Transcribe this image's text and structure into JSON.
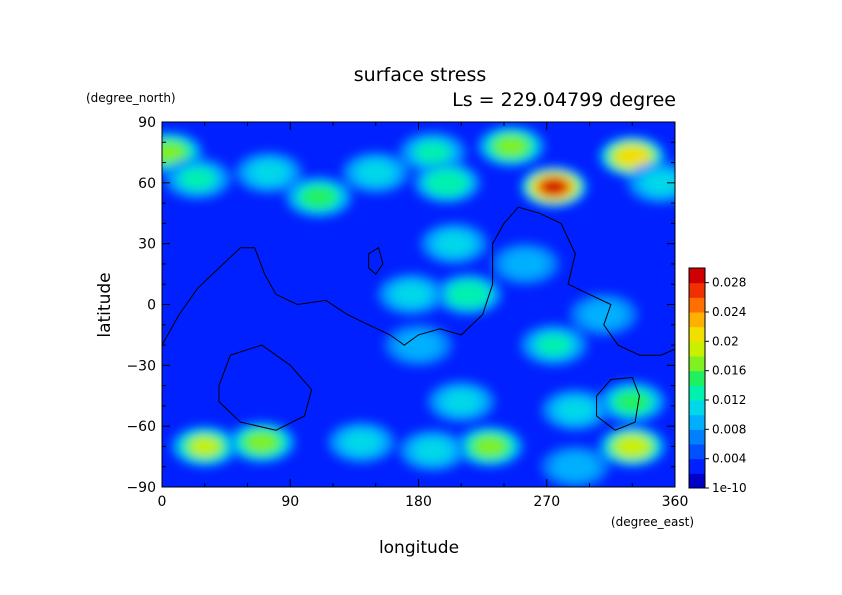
{
  "chart_data": {
    "type": "heatmap",
    "title": "surface stress",
    "subtitle": "Ls = 229.04799 degree",
    "xlabel": "longitude",
    "ylabel": "latitude",
    "xunit": "(degree_east)",
    "yunit": "(degree_north)",
    "xlim": [
      0,
      360
    ],
    "ylim": [
      -90,
      90
    ],
    "xticks": [
      0,
      90,
      180,
      270,
      360
    ],
    "yticks": [
      90,
      60,
      30,
      0,
      -30,
      -60,
      -90
    ],
    "colorbar": {
      "ticks": [
        "1e-10",
        "0.004",
        "0.008",
        "0.012",
        "0.016",
        "0.02",
        "0.024",
        "0.028"
      ],
      "min": 0,
      "max": 0.03,
      "colors": [
        "#0000c8",
        "#0020ff",
        "#0050ff",
        "#0080ff",
        "#00b0ff",
        "#00d8e8",
        "#00f0b0",
        "#20f060",
        "#80f020",
        "#c8f000",
        "#f0e000",
        "#ffb000",
        "#ff7000",
        "#f03000",
        "#d00000"
      ]
    },
    "background_value": 0.003,
    "hotspots": [
      {
        "lon": 5,
        "lat": 75,
        "value": 0.016
      },
      {
        "lon": 25,
        "lat": 62,
        "value": 0.012
      },
      {
        "lon": 75,
        "lat": 65,
        "value": 0.01
      },
      {
        "lon": 110,
        "lat": 53,
        "value": 0.015
      },
      {
        "lon": 150,
        "lat": 65,
        "value": 0.011
      },
      {
        "lon": 190,
        "lat": 75,
        "value": 0.012
      },
      {
        "lon": 245,
        "lat": 78,
        "value": 0.017
      },
      {
        "lon": 200,
        "lat": 60,
        "value": 0.013
      },
      {
        "lon": 275,
        "lat": 58,
        "value": 0.028
      },
      {
        "lon": 330,
        "lat": 73,
        "value": 0.021
      },
      {
        "lon": 350,
        "lat": 60,
        "value": 0.011
      },
      {
        "lon": 205,
        "lat": 30,
        "value": 0.011
      },
      {
        "lon": 215,
        "lat": 5,
        "value": 0.013
      },
      {
        "lon": 175,
        "lat": 5,
        "value": 0.011
      },
      {
        "lon": 180,
        "lat": -20,
        "value": 0.009
      },
      {
        "lon": 275,
        "lat": -20,
        "value": 0.012
      },
      {
        "lon": 310,
        "lat": -5,
        "value": 0.008
      },
      {
        "lon": 255,
        "lat": 20,
        "value": 0.009
      },
      {
        "lon": 330,
        "lat": -48,
        "value": 0.015
      },
      {
        "lon": 210,
        "lat": -48,
        "value": 0.01
      },
      {
        "lon": 290,
        "lat": -52,
        "value": 0.011
      },
      {
        "lon": 140,
        "lat": -68,
        "value": 0.011
      },
      {
        "lon": 30,
        "lat": -70,
        "value": 0.018
      },
      {
        "lon": 70,
        "lat": -68,
        "value": 0.016
      },
      {
        "lon": 230,
        "lat": -70,
        "value": 0.016
      },
      {
        "lon": 330,
        "lat": -70,
        "value": 0.019
      },
      {
        "lon": 190,
        "lat": -72,
        "value": 0.01
      },
      {
        "lon": 290,
        "lat": -80,
        "value": 0.008
      }
    ],
    "contours": [
      [
        [
          0,
          -20
        ],
        [
          12,
          -5
        ],
        [
          25,
          8
        ],
        [
          40,
          18
        ],
        [
          55,
          28
        ],
        [
          65,
          28
        ],
        [
          72,
          15
        ],
        [
          80,
          5
        ],
        [
          95,
          0
        ],
        [
          115,
          2
        ],
        [
          130,
          -5
        ],
        [
          145,
          -10
        ],
        [
          160,
          -15
        ],
        [
          170,
          -20
        ],
        [
          180,
          -15
        ],
        [
          195,
          -12
        ],
        [
          210,
          -15
        ],
        [
          225,
          -5
        ],
        [
          232,
          10
        ],
        [
          232,
          30
        ],
        [
          240,
          40
        ],
        [
          250,
          48
        ],
        [
          265,
          45
        ],
        [
          280,
          40
        ],
        [
          290,
          25
        ],
        [
          285,
          10
        ],
        [
          300,
          5
        ],
        [
          315,
          0
        ],
        [
          310,
          -10
        ],
        [
          320,
          -20
        ],
        [
          335,
          -25
        ],
        [
          350,
          -25
        ],
        [
          360,
          -22
        ]
      ],
      [
        [
          145,
          25
        ],
        [
          152,
          28
        ],
        [
          155,
          20
        ],
        [
          150,
          15
        ],
        [
          145,
          18
        ],
        [
          145,
          25
        ]
      ],
      [
        [
          40,
          -40
        ],
        [
          48,
          -25
        ],
        [
          70,
          -20
        ],
        [
          90,
          -30
        ],
        [
          105,
          -42
        ],
        [
          100,
          -55
        ],
        [
          80,
          -62
        ],
        [
          55,
          -58
        ],
        [
          40,
          -48
        ],
        [
          40,
          -40
        ]
      ],
      [
        [
          305,
          -45
        ],
        [
          315,
          -37
        ],
        [
          330,
          -36
        ],
        [
          335,
          -45
        ],
        [
          332,
          -58
        ],
        [
          318,
          -62
        ],
        [
          305,
          -55
        ],
        [
          305,
          -45
        ]
      ]
    ]
  }
}
